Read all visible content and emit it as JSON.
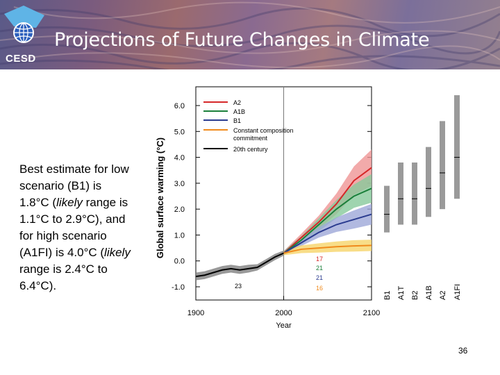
{
  "header": {
    "logo_text": "CESD",
    "title": "Projections of Future Changes in Climate"
  },
  "note": {
    "l1": "Best estimate for low scenario (B1) is 1.8°C (",
    "l1_italic": "likely",
    "l2": " range is 1.1°C to 2.9°C), and for high scenario (A1FI) is 4.0°C (",
    "l2_italic": "likely",
    "l3": " range is 2.4°C to 6.4°C)."
  },
  "page_number": "36",
  "colors": {
    "A2": "#d62728",
    "A1B": "#1a7f3a",
    "B1": "#2a3b8f",
    "commit": "#f08a1c",
    "c20": "#000000"
  },
  "chart_data": {
    "type": "line",
    "xlabel": "Year",
    "ylabel": "Global surface warming (°C)",
    "xlim": [
      1900,
      2100
    ],
    "ylim": [
      -1.0,
      6.0
    ],
    "x_ticks": [
      "1900",
      "2000",
      "2100"
    ],
    "y_ticks": [
      "-1.0",
      "0.0",
      "1.0",
      "2.0",
      "3.0",
      "4.0",
      "5.0",
      "6.0"
    ],
    "legend": [
      "A2",
      "A1B",
      "B1",
      "Constant composition",
      "commitment",
      "20th century"
    ],
    "model_counts": [
      {
        "text": "17",
        "series": "A2"
      },
      {
        "text": "21",
        "series": "A1B"
      },
      {
        "text": "21",
        "series": "B1"
      },
      {
        "text": "16",
        "series": "commit"
      },
      {
        "text": "23",
        "series": "c20"
      }
    ],
    "series": [
      {
        "name": "20th century",
        "key": "c20",
        "x": [
          1900,
          1910,
          1920,
          1930,
          1940,
          1950,
          1960,
          1970,
          1980,
          1990,
          2000
        ],
        "y": [
          -0.6,
          -0.55,
          -0.45,
          -0.35,
          -0.3,
          -0.35,
          -0.3,
          -0.25,
          -0.05,
          0.15,
          0.3
        ],
        "band": [
          0.15,
          0.15,
          0.15,
          0.15,
          0.15,
          0.15,
          0.15,
          0.12,
          0.12,
          0.12,
          0.1
        ]
      },
      {
        "name": "A2",
        "key": "A2",
        "x": [
          2000,
          2020,
          2040,
          2060,
          2080,
          2100
        ],
        "y": [
          0.3,
          0.9,
          1.5,
          2.2,
          3.1,
          3.6
        ],
        "band": [
          0.08,
          0.15,
          0.25,
          0.4,
          0.55,
          0.7
        ]
      },
      {
        "name": "A1B",
        "key": "A1B",
        "x": [
          2000,
          2020,
          2040,
          2060,
          2080,
          2100
        ],
        "y": [
          0.3,
          0.8,
          1.4,
          2.0,
          2.5,
          2.8
        ],
        "band": [
          0.08,
          0.15,
          0.25,
          0.35,
          0.45,
          0.55
        ]
      },
      {
        "name": "B1",
        "key": "B1",
        "x": [
          2000,
          2020,
          2040,
          2060,
          2080,
          2100
        ],
        "y": [
          0.3,
          0.7,
          1.1,
          1.4,
          1.6,
          1.8
        ],
        "band": [
          0.08,
          0.12,
          0.2,
          0.28,
          0.35,
          0.4
        ]
      },
      {
        "name": "Constant composition commitment",
        "key": "commit",
        "x": [
          2000,
          2020,
          2040,
          2060,
          2080,
          2100
        ],
        "y": [
          0.3,
          0.45,
          0.5,
          0.55,
          0.58,
          0.6
        ],
        "band": [
          0.08,
          0.15,
          0.18,
          0.2,
          0.22,
          0.22
        ]
      }
    ],
    "range_bars": [
      {
        "label": "B1",
        "low": 1.1,
        "best": 1.8,
        "high": 2.9
      },
      {
        "label": "A1T",
        "low": 1.4,
        "best": 2.4,
        "high": 3.8
      },
      {
        "label": "B2",
        "low": 1.4,
        "best": 2.4,
        "high": 3.8
      },
      {
        "label": "A1B",
        "low": 1.7,
        "best": 2.8,
        "high": 4.4
      },
      {
        "label": "A2",
        "low": 2.0,
        "best": 3.4,
        "high": 5.4
      },
      {
        "label": "A1FI",
        "low": 2.4,
        "best": 4.0,
        "high": 6.4
      }
    ]
  }
}
